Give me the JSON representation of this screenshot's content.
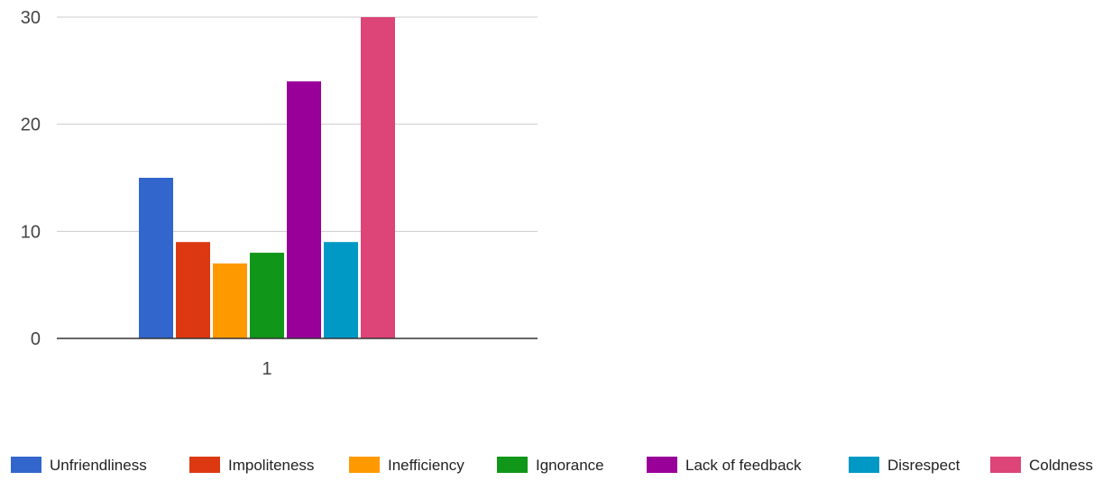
{
  "chart_data": {
    "type": "bar",
    "categories": [
      "1"
    ],
    "series": [
      {
        "name": "Unfriendliness",
        "values": [
          15
        ],
        "color": "#3366cc"
      },
      {
        "name": "Impoliteness",
        "values": [
          9
        ],
        "color": "#dc3912"
      },
      {
        "name": "Inefficiency",
        "values": [
          7
        ],
        "color": "#ff9900"
      },
      {
        "name": "Ignorance",
        "values": [
          8
        ],
        "color": "#109618"
      },
      {
        "name": "Lack of feedback",
        "values": [
          24
        ],
        "color": "#990099"
      },
      {
        "name": "Disrespect",
        "values": [
          9
        ],
        "color": "#0099c6"
      },
      {
        "name": "Coldness",
        "values": [
          30
        ],
        "color": "#dd4477"
      }
    ],
    "ylim": [
      0,
      30
    ],
    "yticks": [
      0,
      10,
      20,
      30
    ],
    "grid": true,
    "legend_position": "bottom"
  }
}
